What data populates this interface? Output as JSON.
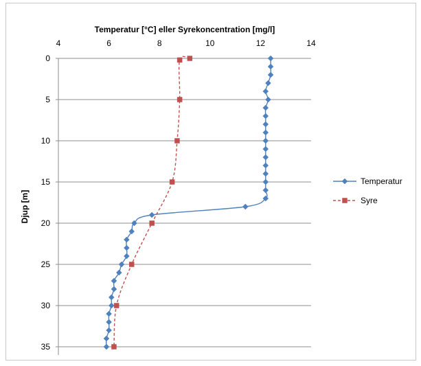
{
  "chart_data": {
    "type": "line",
    "title": "",
    "xlabel": "Temperatur [°C] eller Syrekoncentration [mg/l]",
    "ylabel": "Djup [m]",
    "xlim": [
      4,
      14
    ],
    "xticks": [
      4,
      6,
      8,
      10,
      12,
      14
    ],
    "ylim": [
      0,
      36
    ],
    "yticks": [
      0,
      5,
      10,
      15,
      20,
      25,
      30,
      35
    ],
    "y_inverted": true,
    "x_axis_position": "top",
    "grid": "horizontal",
    "legend_position": "right",
    "series": [
      {
        "name": "Temperatur",
        "color": "#4f81bd",
        "marker": "diamond",
        "line_style": "solid",
        "points": [
          {
            "x": 12.4,
            "y": 0
          },
          {
            "x": 12.4,
            "y": 1
          },
          {
            "x": 12.4,
            "y": 2
          },
          {
            "x": 12.3,
            "y": 3
          },
          {
            "x": 12.2,
            "y": 4
          },
          {
            "x": 12.3,
            "y": 5
          },
          {
            "x": 12.2,
            "y": 6
          },
          {
            "x": 12.2,
            "y": 7
          },
          {
            "x": 12.2,
            "y": 8
          },
          {
            "x": 12.2,
            "y": 9
          },
          {
            "x": 12.2,
            "y": 10
          },
          {
            "x": 12.2,
            "y": 11
          },
          {
            "x": 12.2,
            "y": 12
          },
          {
            "x": 12.2,
            "y": 13
          },
          {
            "x": 12.2,
            "y": 14
          },
          {
            "x": 12.2,
            "y": 15
          },
          {
            "x": 12.2,
            "y": 16
          },
          {
            "x": 12.2,
            "y": 17
          },
          {
            "x": 11.4,
            "y": 18
          },
          {
            "x": 7.7,
            "y": 19
          },
          {
            "x": 7.0,
            "y": 20
          },
          {
            "x": 6.9,
            "y": 21
          },
          {
            "x": 6.7,
            "y": 22
          },
          {
            "x": 6.7,
            "y": 23
          },
          {
            "x": 6.7,
            "y": 24
          },
          {
            "x": 6.5,
            "y": 25
          },
          {
            "x": 6.4,
            "y": 26
          },
          {
            "x": 6.2,
            "y": 27
          },
          {
            "x": 6.2,
            "y": 28
          },
          {
            "x": 6.1,
            "y": 29
          },
          {
            "x": 6.1,
            "y": 30
          },
          {
            "x": 6.0,
            "y": 31
          },
          {
            "x": 6.0,
            "y": 32
          },
          {
            "x": 6.0,
            "y": 33
          },
          {
            "x": 5.9,
            "y": 34
          },
          {
            "x": 5.9,
            "y": 35
          }
        ]
      },
      {
        "name": "Syre",
        "color": "#c0504d",
        "marker": "square",
        "line_style": "dashed",
        "points": [
          {
            "x": 9.2,
            "y": 0
          },
          {
            "x": 8.8,
            "y": 0.2
          },
          {
            "x": 8.8,
            "y": 5
          },
          {
            "x": 8.7,
            "y": 10
          },
          {
            "x": 8.5,
            "y": 15
          },
          {
            "x": 7.7,
            "y": 20
          },
          {
            "x": 6.9,
            "y": 25
          },
          {
            "x": 6.3,
            "y": 30
          },
          {
            "x": 6.2,
            "y": 35
          }
        ]
      }
    ]
  }
}
